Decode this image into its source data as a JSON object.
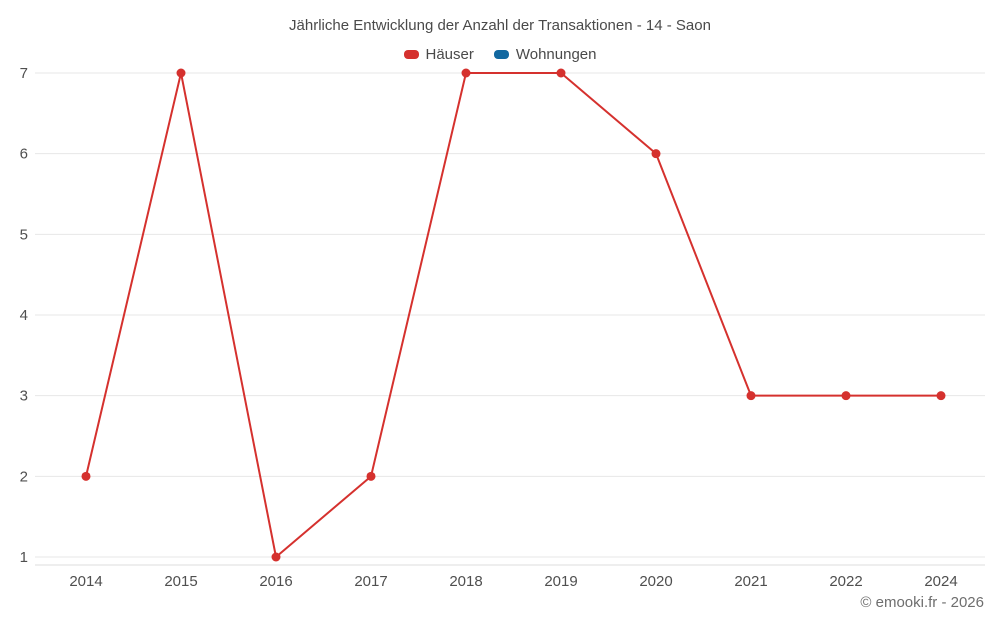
{
  "chart_data": {
    "type": "line",
    "title": "Jährliche Entwicklung der Anzahl der Transaktionen - 14 - Saon",
    "categories": [
      "2014",
      "2015",
      "2016",
      "2017",
      "2018",
      "2019",
      "2020",
      "2021",
      "2022",
      "2024"
    ],
    "series": [
      {
        "name": "Häuser",
        "color": "#d5312e",
        "values": [
          2,
          7,
          1,
          2,
          7,
          7,
          6,
          3,
          3,
          3
        ]
      },
      {
        "name": "Wohnungen",
        "color": "#1268a0",
        "values": []
      }
    ],
    "y_ticks": [
      1,
      2,
      3,
      4,
      5,
      6,
      7
    ],
    "ylim": [
      1,
      7
    ],
    "grid": true,
    "legend_position": "top"
  },
  "footer": {
    "copyright": "© emooki.fr - 2026"
  }
}
